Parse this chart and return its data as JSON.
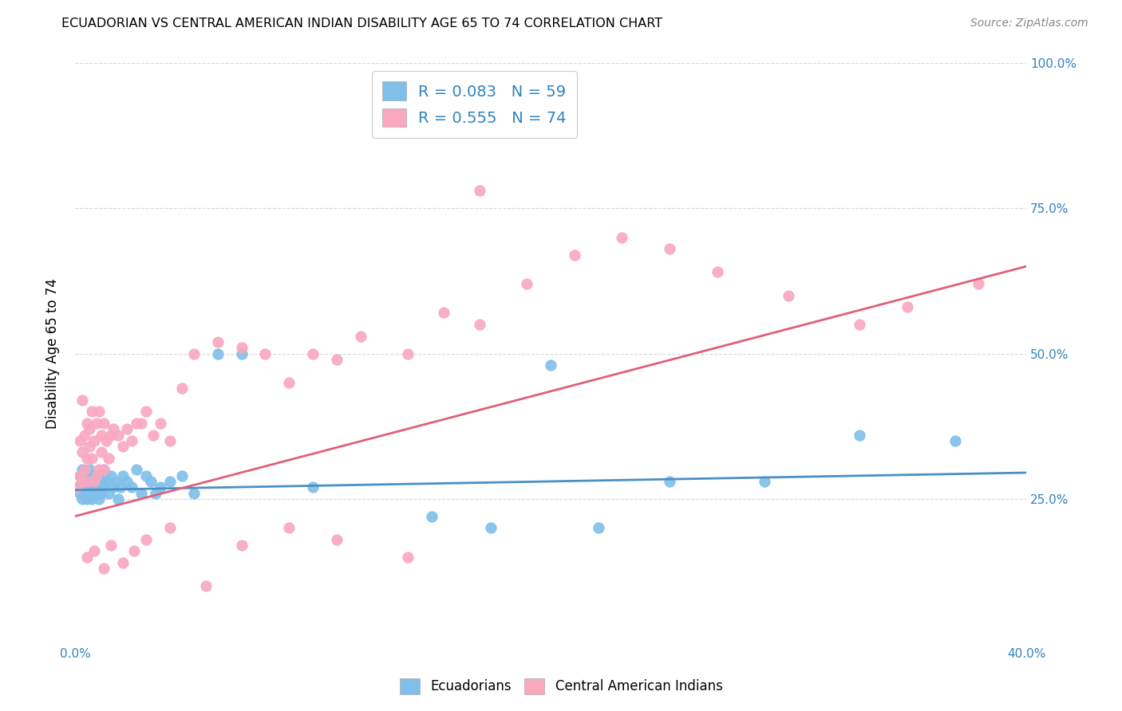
{
  "title": "ECUADORIAN VS CENTRAL AMERICAN INDIAN DISABILITY AGE 65 TO 74 CORRELATION CHART",
  "source": "Source: ZipAtlas.com",
  "ylabel": "Disability Age 65 to 74",
  "x_min": 0.0,
  "x_max": 0.4,
  "y_min": 0.0,
  "y_max": 1.0,
  "blue_color": "#7fbfea",
  "pink_color": "#f9a8c0",
  "blue_line_color": "#4a90c4",
  "pink_line_color": "#e0607a",
  "R_blue": 0.083,
  "N_blue": 59,
  "R_pink": 0.555,
  "N_pink": 74,
  "legend_text_color": "#3182bd",
  "background_color": "#ffffff",
  "grid_color": "#d8d8d8",
  "ecuadorians_x": [
    0.001,
    0.002,
    0.002,
    0.003,
    0.003,
    0.003,
    0.004,
    0.004,
    0.004,
    0.005,
    0.005,
    0.005,
    0.006,
    0.006,
    0.006,
    0.007,
    0.007,
    0.007,
    0.008,
    0.008,
    0.009,
    0.009,
    0.01,
    0.01,
    0.01,
    0.011,
    0.011,
    0.012,
    0.012,
    0.013,
    0.014,
    0.015,
    0.016,
    0.017,
    0.018,
    0.019,
    0.02,
    0.022,
    0.024,
    0.026,
    0.028,
    0.03,
    0.032,
    0.034,
    0.036,
    0.04,
    0.045,
    0.05,
    0.06,
    0.07,
    0.1,
    0.15,
    0.175,
    0.2,
    0.22,
    0.25,
    0.29,
    0.33,
    0.37
  ],
  "ecuadorians_y": [
    0.27,
    0.26,
    0.29,
    0.25,
    0.28,
    0.3,
    0.27,
    0.26,
    0.28,
    0.27,
    0.29,
    0.25,
    0.28,
    0.26,
    0.3,
    0.27,
    0.28,
    0.25,
    0.29,
    0.27,
    0.26,
    0.28,
    0.27,
    0.29,
    0.25,
    0.28,
    0.26,
    0.27,
    0.3,
    0.28,
    0.26,
    0.29,
    0.27,
    0.28,
    0.25,
    0.27,
    0.29,
    0.28,
    0.27,
    0.3,
    0.26,
    0.29,
    0.28,
    0.26,
    0.27,
    0.28,
    0.29,
    0.26,
    0.5,
    0.5,
    0.27,
    0.22,
    0.2,
    0.48,
    0.2,
    0.28,
    0.28,
    0.36,
    0.35
  ],
  "central_american_x": [
    0.001,
    0.002,
    0.002,
    0.003,
    0.003,
    0.003,
    0.004,
    0.004,
    0.005,
    0.005,
    0.005,
    0.006,
    0.006,
    0.007,
    0.007,
    0.008,
    0.008,
    0.009,
    0.009,
    0.01,
    0.01,
    0.011,
    0.011,
    0.012,
    0.012,
    0.013,
    0.014,
    0.015,
    0.016,
    0.018,
    0.02,
    0.022,
    0.024,
    0.026,
    0.028,
    0.03,
    0.033,
    0.036,
    0.04,
    0.045,
    0.05,
    0.06,
    0.07,
    0.08,
    0.09,
    0.1,
    0.11,
    0.12,
    0.14,
    0.155,
    0.17,
    0.19,
    0.21,
    0.23,
    0.25,
    0.27,
    0.3,
    0.33,
    0.35,
    0.38,
    0.005,
    0.008,
    0.012,
    0.015,
    0.02,
    0.025,
    0.03,
    0.04,
    0.055,
    0.07,
    0.09,
    0.11,
    0.14,
    0.17
  ],
  "central_american_y": [
    0.27,
    0.29,
    0.35,
    0.28,
    0.33,
    0.42,
    0.3,
    0.36,
    0.28,
    0.38,
    0.32,
    0.34,
    0.37,
    0.32,
    0.4,
    0.28,
    0.35,
    0.29,
    0.38,
    0.3,
    0.4,
    0.33,
    0.36,
    0.3,
    0.38,
    0.35,
    0.32,
    0.36,
    0.37,
    0.36,
    0.34,
    0.37,
    0.35,
    0.38,
    0.38,
    0.4,
    0.36,
    0.38,
    0.35,
    0.44,
    0.5,
    0.52,
    0.51,
    0.5,
    0.45,
    0.5,
    0.49,
    0.53,
    0.5,
    0.57,
    0.55,
    0.62,
    0.67,
    0.7,
    0.68,
    0.64,
    0.6,
    0.55,
    0.58,
    0.62,
    0.15,
    0.16,
    0.13,
    0.17,
    0.14,
    0.16,
    0.18,
    0.2,
    0.1,
    0.17,
    0.2,
    0.18,
    0.15,
    0.78
  ]
}
